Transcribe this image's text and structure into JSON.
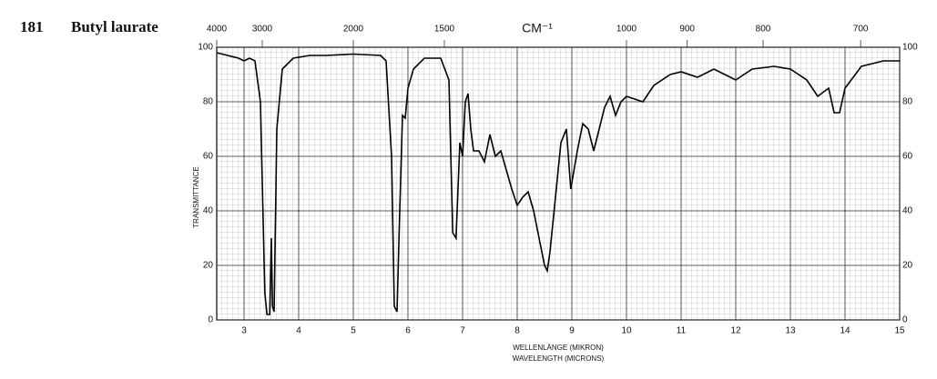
{
  "chart_data": {
    "type": "line",
    "number": "181",
    "title": "Butyl laurate",
    "xlabel": "WELLENLÄNGE (MIKRON)",
    "xlabel2": "WAVELENGTH (MICRONS)",
    "ylabel": "TRANSMITTANCE",
    "x2label": "CM⁻¹",
    "x": [
      2.5,
      2.7,
      2.9,
      3.0,
      3.1,
      3.2,
      3.3,
      3.38,
      3.42,
      3.47,
      3.5,
      3.52,
      3.55,
      3.6,
      3.7,
      3.9,
      4.2,
      4.5,
      5.0,
      5.5,
      5.6,
      5.7,
      5.75,
      5.8,
      5.85,
      5.9,
      5.95,
      6.0,
      6.1,
      6.3,
      6.6,
      6.75,
      6.82,
      6.88,
      6.95,
      7.0,
      7.05,
      7.1,
      7.15,
      7.2,
      7.3,
      7.4,
      7.5,
      7.6,
      7.7,
      7.8,
      7.9,
      8.0,
      8.1,
      8.2,
      8.3,
      8.4,
      8.5,
      8.55,
      8.6,
      8.7,
      8.8,
      8.9,
      8.98,
      9.1,
      9.2,
      9.3,
      9.4,
      9.5,
      9.6,
      9.7,
      9.8,
      9.9,
      10.0,
      10.3,
      10.5,
      10.8,
      11.0,
      11.3,
      11.6,
      12.0,
      12.3,
      12.7,
      13.0,
      13.3,
      13.5,
      13.7,
      13.8,
      13.9,
      14.0,
      14.3,
      14.7,
      15.0
    ],
    "series": [
      {
        "name": "Transmittance",
        "color": "#000000",
        "values": [
          98,
          97,
          96,
          95,
          96,
          95,
          80,
          10,
          2,
          2,
          30,
          5,
          3,
          70,
          92,
          96,
          97,
          97,
          97.5,
          97,
          95,
          60,
          5,
          3,
          40,
          75,
          74,
          85,
          92,
          96,
          96,
          88,
          32,
          30,
          65,
          60,
          80,
          83,
          70,
          62,
          62,
          58,
          68,
          60,
          62,
          55,
          48,
          42,
          45,
          47,
          40,
          30,
          20,
          18,
          25,
          45,
          65,
          70,
          48,
          62,
          72,
          70,
          62,
          70,
          78,
          82,
          75,
          80,
          82,
          80,
          86,
          90,
          91,
          89,
          92,
          88,
          92,
          93,
          92,
          88,
          82,
          85,
          76,
          76,
          85,
          93,
          95,
          95
        ]
      }
    ],
    "xlim": [
      2.5,
      15
    ],
    "xticks": [
      3,
      4,
      5,
      6,
      7,
      8,
      9,
      10,
      11,
      12,
      13,
      14,
      15
    ],
    "ylim": [
      0,
      100
    ],
    "yticks": [
      0,
      20,
      40,
      60,
      80,
      100
    ],
    "x2ticks": [
      4000,
      3000,
      2000,
      1500,
      1000,
      900,
      800,
      700
    ],
    "x2scale": "reciprocal",
    "grid": true
  }
}
